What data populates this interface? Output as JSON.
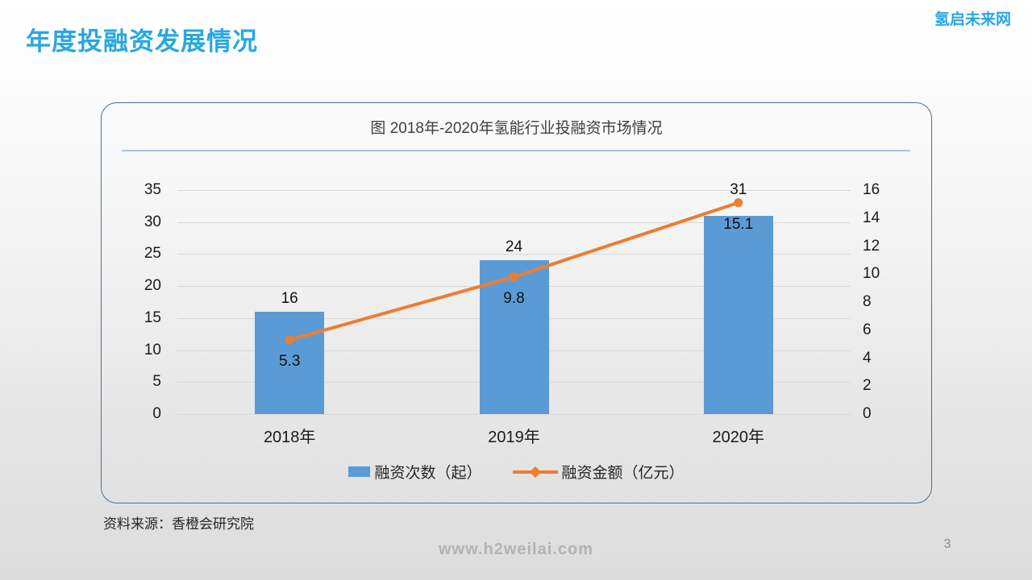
{
  "header": {
    "title": "年度投融资发展情况",
    "logo": "氢启未来网"
  },
  "chart_data": {
    "type": "combo",
    "title": "图 2018年-2020年氢能行业投融资市场情况",
    "categories": [
      "2018年",
      "2019年",
      "2020年"
    ],
    "series": [
      {
        "name": "融资次数（起）",
        "type": "bar",
        "axis": "left",
        "values": [
          16,
          24,
          31
        ],
        "color": "#5B9BD5"
      },
      {
        "name": "融资金额（亿元）",
        "type": "line",
        "axis": "right",
        "values": [
          5.3,
          9.8,
          15.1
        ],
        "color": "#ED7D31"
      }
    ],
    "left_axis": {
      "min": 0,
      "max": 35,
      "step": 5,
      "ticks": [
        35,
        30,
        25,
        20,
        15,
        10,
        5,
        0
      ]
    },
    "right_axis": {
      "min": 0,
      "max": 16,
      "step": 2,
      "ticks": [
        16,
        14,
        12,
        10,
        8,
        6,
        4,
        2,
        0
      ]
    },
    "grid": true,
    "legend_position": "bottom"
  },
  "source_note": "资料来源：香橙会研究院",
  "footer": {
    "url": "www.h2weilai.com",
    "page_number": "3"
  },
  "colors": {
    "accent_blue": "#29A7E1",
    "card_border": "#41719C",
    "divider": "#A6C3E3",
    "gridline": "#D9D9D9",
    "bar": "#5B9BD5",
    "line": "#ED7D31"
  }
}
